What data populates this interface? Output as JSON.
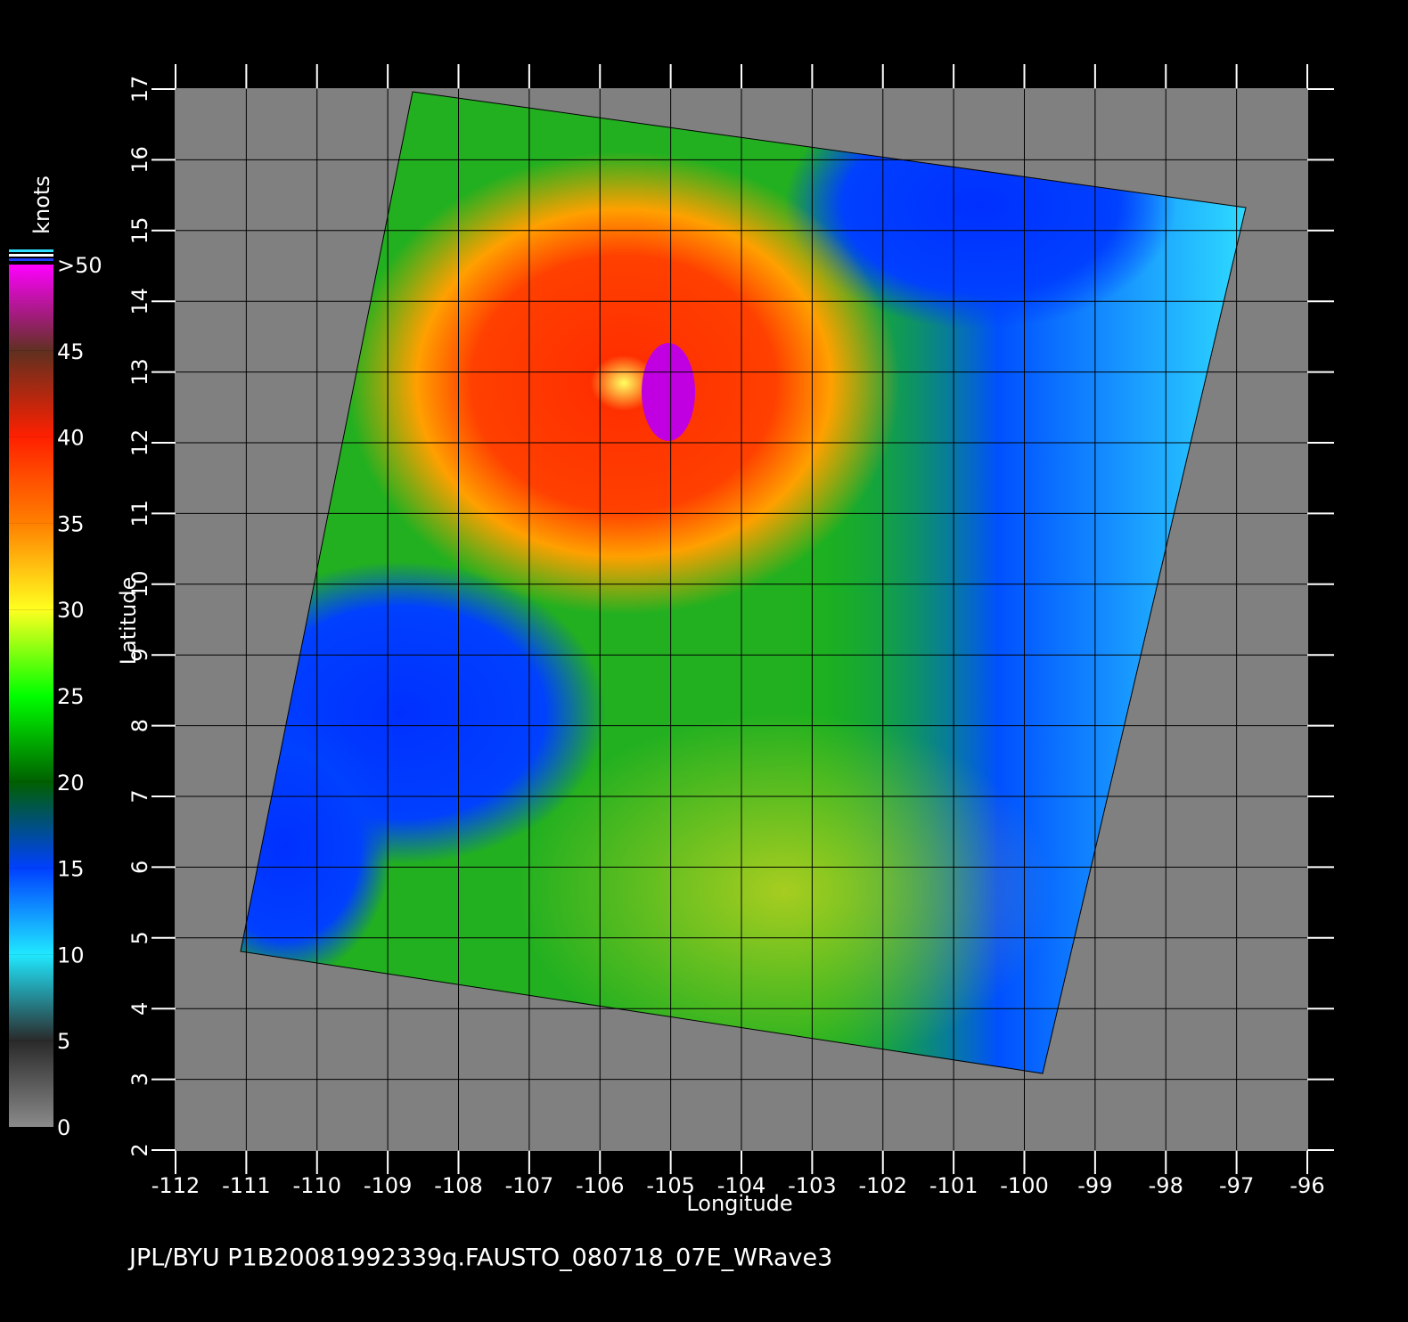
{
  "chart_data": {
    "type": "map",
    "footer": "JPL/BYU  P1B20081992339q.FAUSTO_080718_07E_WRave3",
    "xlabel": "Longitude",
    "ylabel": "Latitude",
    "xlim": [
      -112,
      -96
    ],
    "xticks": [
      -112,
      -111,
      -110,
      -109,
      -108,
      -107,
      -106,
      -105,
      -104,
      -103,
      -102,
      -101,
      -100,
      -99,
      -98,
      -97,
      -96
    ],
    "ylim": [
      2,
      17
    ],
    "yticks": [
      2,
      3,
      4,
      5,
      6,
      7,
      8,
      9,
      10,
      11,
      12,
      13,
      14,
      15,
      16,
      17
    ],
    "grid": true,
    "colorbar": {
      "title": "knots",
      "ticks": [
        0,
        5,
        10,
        15,
        20,
        25,
        30,
        35,
        40,
        45,
        {
          "value": 50,
          "label": ">50"
        }
      ],
      "colors": [
        "#8a8a8a",
        "#2a2a2a",
        "#20e8ff",
        "#0040ff",
        "#006000",
        "#00ff00",
        "#ffff20",
        "#ff8000",
        "#ff2000",
        "#603020",
        "#ff00ff",
        "#7000c0"
      ]
    }
  }
}
